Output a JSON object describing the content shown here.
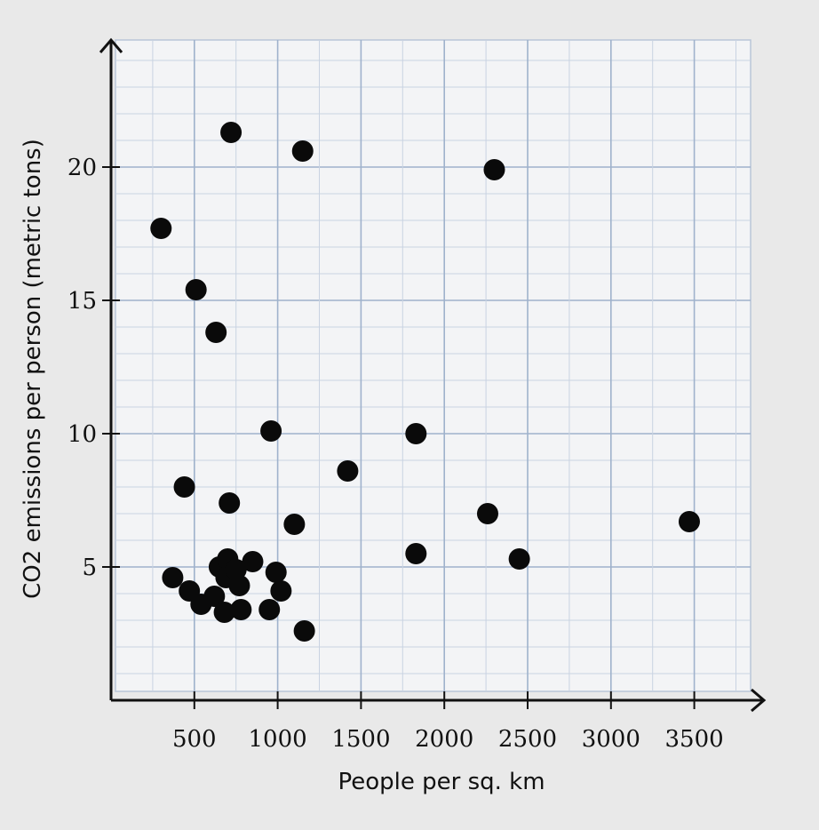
{
  "chart_data": {
    "type": "scatter",
    "xlabel": "People per sq. km",
    "ylabel": "CO2 emissions per person (metric tons)",
    "x_ticks": [
      500,
      1000,
      1500,
      2000,
      2500,
      3000,
      3500
    ],
    "y_ticks": [
      5,
      10,
      15,
      20
    ],
    "xlim": [
      0,
      3900
    ],
    "ylim": [
      0,
      25
    ],
    "grid": true,
    "points": [
      {
        "x": 720,
        "y": 21.3
      },
      {
        "x": 1150,
        "y": 20.6
      },
      {
        "x": 2300,
        "y": 19.9
      },
      {
        "x": 300,
        "y": 17.7
      },
      {
        "x": 510,
        "y": 15.4
      },
      {
        "x": 630,
        "y": 13.8
      },
      {
        "x": 960,
        "y": 10.1
      },
      {
        "x": 1830,
        "y": 10.0
      },
      {
        "x": 1420,
        "y": 8.6
      },
      {
        "x": 440,
        "y": 8.0
      },
      {
        "x": 710,
        "y": 7.4
      },
      {
        "x": 2260,
        "y": 7.0
      },
      {
        "x": 1100,
        "y": 6.6
      },
      {
        "x": 3470,
        "y": 6.7
      },
      {
        "x": 1830,
        "y": 5.5
      },
      {
        "x": 2450,
        "y": 5.3
      },
      {
        "x": 370,
        "y": 4.6
      },
      {
        "x": 470,
        "y": 4.1
      },
      {
        "x": 540,
        "y": 3.6
      },
      {
        "x": 620,
        "y": 3.9
      },
      {
        "x": 650,
        "y": 5.0
      },
      {
        "x": 700,
        "y": 5.3
      },
      {
        "x": 690,
        "y": 4.6
      },
      {
        "x": 680,
        "y": 3.3
      },
      {
        "x": 750,
        "y": 4.9
      },
      {
        "x": 770,
        "y": 4.3
      },
      {
        "x": 780,
        "y": 3.4
      },
      {
        "x": 850,
        "y": 5.2
      },
      {
        "x": 950,
        "y": 3.4
      },
      {
        "x": 990,
        "y": 4.8
      },
      {
        "x": 1020,
        "y": 4.1
      },
      {
        "x": 1160,
        "y": 2.6
      }
    ]
  }
}
